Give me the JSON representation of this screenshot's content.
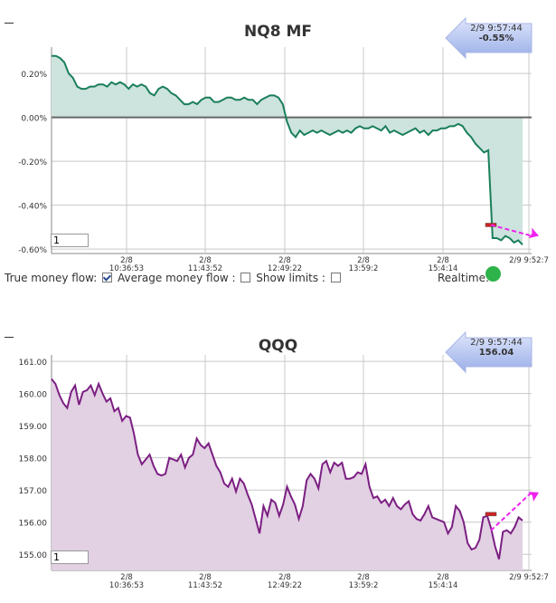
{
  "chart_data": [
    {
      "type": "area",
      "title": "NQ8 MF",
      "ylim": [
        -0.62,
        0.32
      ],
      "yticks": [
        0.2,
        0.0,
        -0.2,
        -0.4,
        -0.6
      ],
      "ytick_labels": [
        "0.20%",
        "0.00%",
        "-0.20%",
        "-0.40%",
        "-0.60%"
      ],
      "xtick_labels": [
        [
          "2/8",
          "10:36:53"
        ],
        [
          "2/8",
          "11:43:52"
        ],
        [
          "2/8",
          "12:49:22"
        ],
        [
          "2/8",
          "13:59:2"
        ],
        [
          "2/8",
          "15:4:14"
        ],
        [
          "2/9 9:52:7"
        ]
      ],
      "baseline": 0,
      "color": "#1a7f5a",
      "fill": "#cde3de",
      "values": [
        0.28,
        0.28,
        0.27,
        0.25,
        0.2,
        0.18,
        0.14,
        0.13,
        0.13,
        0.14,
        0.14,
        0.15,
        0.15,
        0.14,
        0.16,
        0.15,
        0.16,
        0.15,
        0.13,
        0.15,
        0.14,
        0.15,
        0.14,
        0.11,
        0.1,
        0.13,
        0.14,
        0.13,
        0.11,
        0.1,
        0.08,
        0.06,
        0.06,
        0.07,
        0.06,
        0.08,
        0.09,
        0.09,
        0.07,
        0.07,
        0.08,
        0.09,
        0.09,
        0.08,
        0.08,
        0.09,
        0.08,
        0.08,
        0.06,
        0.08,
        0.09,
        0.1,
        0.1,
        0.09,
        0.06,
        -0.02,
        -0.07,
        -0.09,
        -0.06,
        -0.08,
        -0.07,
        -0.06,
        -0.07,
        -0.06,
        -0.07,
        -0.08,
        -0.07,
        -0.06,
        -0.07,
        -0.06,
        -0.07,
        -0.05,
        -0.04,
        -0.05,
        -0.05,
        -0.04,
        -0.05,
        -0.06,
        -0.04,
        -0.07,
        -0.06,
        -0.07,
        -0.08,
        -0.07,
        -0.06,
        -0.05,
        -0.07,
        -0.06,
        -0.08,
        -0.06,
        -0.06,
        -0.05,
        -0.05,
        -0.04,
        -0.04,
        -0.03,
        -0.04,
        -0.07,
        -0.09,
        -0.12,
        -0.14,
        -0.16,
        -0.15,
        -0.55,
        -0.55,
        -0.56,
        -0.54,
        -0.55,
        -0.57,
        -0.56,
        -0.58
      ],
      "marker_value": -0.49,
      "badge": {
        "time": "2/9 9:57:44",
        "value": "-0.55%"
      },
      "input_value": "1"
    },
    {
      "type": "area",
      "title": "QQQ",
      "ylim": [
        154.5,
        161.2
      ],
      "yticks": [
        161,
        160,
        159,
        158,
        157,
        156,
        155
      ],
      "ytick_labels": [
        "161.00",
        "160.00",
        "159.00",
        "158.00",
        "157.00",
        "156.00",
        "155.00"
      ],
      "xtick_labels": [
        [
          "2/8",
          "10:36:53"
        ],
        [
          "2/8",
          "11:43:52"
        ],
        [
          "2/8",
          "12:49:22"
        ],
        [
          "2/8",
          "13:59:2"
        ],
        [
          "2/8",
          "15:4:14"
        ],
        [
          "2/9 9:52:7"
        ]
      ],
      "baseline": null,
      "color": "#7b1f82",
      "fill": "#e2d0e3",
      "values": [
        160.45,
        160.3,
        159.95,
        159.7,
        159.55,
        160.05,
        160.25,
        159.65,
        160.05,
        160.1,
        160.25,
        159.95,
        160.3,
        160.0,
        159.75,
        159.85,
        159.45,
        159.55,
        159.15,
        159.3,
        159.25,
        158.75,
        158.1,
        157.8,
        157.95,
        158.1,
        157.75,
        157.5,
        157.45,
        157.5,
        158.0,
        157.95,
        157.9,
        158.1,
        157.7,
        158.0,
        158.1,
        158.6,
        158.4,
        158.3,
        158.45,
        158.1,
        157.75,
        157.55,
        157.2,
        157.1,
        157.35,
        156.95,
        157.35,
        157.2,
        156.85,
        156.55,
        156.1,
        155.65,
        156.5,
        156.2,
        156.7,
        156.6,
        156.2,
        156.55,
        157.1,
        156.8,
        156.55,
        156.1,
        156.5,
        157.3,
        157.5,
        157.35,
        157.05,
        157.8,
        157.9,
        157.55,
        157.85,
        157.75,
        157.85,
        157.35,
        157.35,
        157.4,
        157.55,
        157.5,
        157.8,
        157.1,
        156.75,
        156.8,
        156.6,
        156.7,
        156.5,
        156.75,
        156.5,
        156.4,
        156.55,
        156.65,
        156.25,
        156.1,
        156.05,
        156.25,
        156.5,
        156.15,
        156.1,
        156.05,
        156.0,
        155.65,
        155.85,
        156.5,
        156.35,
        156.0,
        155.35,
        155.15,
        155.2,
        155.45,
        156.15,
        156.2,
        155.8,
        155.25,
        154.85,
        155.7,
        155.75,
        155.65,
        155.85,
        156.15,
        156.05
      ],
      "marker_value": 156.25,
      "badge": {
        "time": "2/9 9:57:44",
        "value": "156.04"
      },
      "input_value": "1"
    }
  ],
  "controls": {
    "true_money_flow_label": "True money flow:",
    "average_money_flow_label": "Average money flow :",
    "show_limits_label": "Show limits :",
    "realtime_label": "Realtime:",
    "true_money_flow_checked": true
  },
  "colors": {
    "grid": "#c8c8c8",
    "zero_line": "#666666",
    "projection": "#ee22ee",
    "marker": "#cc2222",
    "realtime_on": "#2db34a",
    "badge_arrow": "#b6c4ef"
  }
}
